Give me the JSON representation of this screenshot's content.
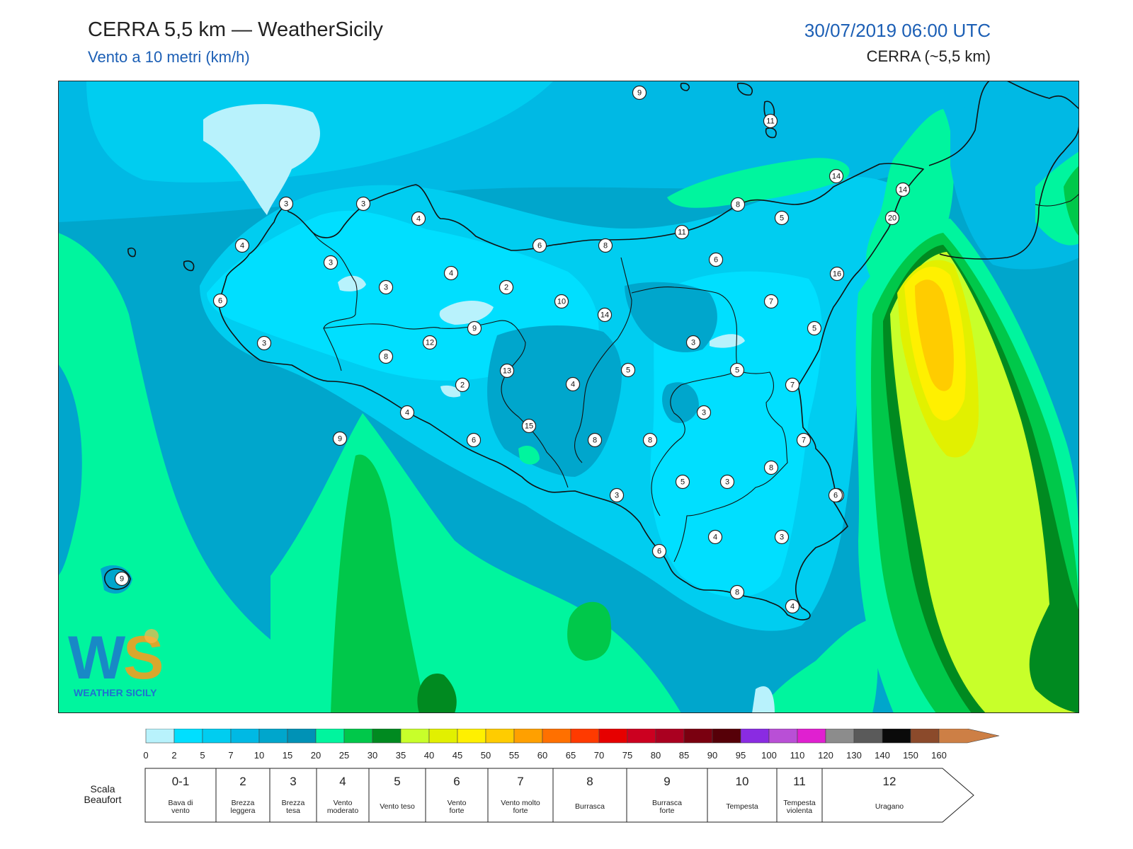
{
  "header": {
    "title": "CERRA 5,5 km — WeatherSicily",
    "subtitle": "Vento a 10 metri (km/h)",
    "datetime": "30/07/2019 06:00 UTC",
    "model": "CERRA (~5,5 km)"
  },
  "logo": {
    "text": "WEATHER SICILY"
  },
  "colors": {
    "c0": "#b8f2fc",
    "c2": "#00dfff",
    "c5": "#00cdf0",
    "c7": "#00b9e4",
    "c10": "#00a6cc",
    "c12": "#0092b6",
    "c15": "#00f59e",
    "c20": "#00c84a",
    "c25": "#008a20",
    "c30": "#c8ff2a",
    "c35": "#e2f000",
    "c40": "#fff000",
    "c45": "#ffcc00",
    "c_bg_map": "#00b2d8"
  },
  "colorbar": {
    "ticks": [
      "0",
      "2",
      "5",
      "7",
      "10",
      "15",
      "20",
      "25",
      "30",
      "35",
      "40",
      "45",
      "50",
      "55",
      "60",
      "65",
      "70",
      "75",
      "80",
      "85",
      "90",
      "95",
      "100",
      "110",
      "120",
      "130",
      "140",
      "150",
      "160"
    ],
    "colors": [
      "#b8f2fc",
      "#00dfff",
      "#00cdf0",
      "#00b9e4",
      "#00a6cc",
      "#0092b6",
      "#00f59e",
      "#00c84a",
      "#008a20",
      "#c8ff2a",
      "#e2f000",
      "#fff000",
      "#ffcc00",
      "#ffa000",
      "#ff7000",
      "#ff3a00",
      "#e60000",
      "#cc0020",
      "#aa0020",
      "#7a0010",
      "#560008",
      "#8a2be2",
      "#b94fd6",
      "#e020d0",
      "#8c8c8c",
      "#5a5a5a",
      "#0a0a0a",
      "#8b4a2b",
      "#cd7f45"
    ]
  },
  "beaufort": {
    "label": "Scala Beaufort",
    "scale": [
      {
        "num": "0-1",
        "name1": "Bava di",
        "name2": "vento"
      },
      {
        "num": "2",
        "name1": "Brezza",
        "name2": "leggera"
      },
      {
        "num": "3",
        "name1": "Brezza",
        "name2": "tesa"
      },
      {
        "num": "4",
        "name1": "Vento",
        "name2": "moderato"
      },
      {
        "num": "5",
        "name1": "Vento teso",
        "name2": ""
      },
      {
        "num": "6",
        "name1": "Vento",
        "name2": "forte"
      },
      {
        "num": "7",
        "name1": "Vento molto",
        "name2": "forte"
      },
      {
        "num": "8",
        "name1": "Burrasca",
        "name2": ""
      },
      {
        "num": "9",
        "name1": "Burrasca",
        "name2": "forte"
      },
      {
        "num": "10",
        "name1": "Tempesta",
        "name2": ""
      },
      {
        "num": "11",
        "name1": "Tempesta",
        "name2": "violenta"
      },
      {
        "num": "12",
        "name1": "Uragano",
        "name2": ""
      }
    ]
  },
  "stations": [
    "9",
    "11",
    "14",
    "14",
    "20",
    "16",
    "3",
    "3",
    "4",
    "4",
    "6",
    "9",
    "11",
    "8",
    "5",
    "3",
    "3",
    "6",
    "8",
    "6",
    "7",
    "5",
    "3",
    "4",
    "2",
    "10",
    "14",
    "3",
    "12",
    "9",
    "8",
    "13",
    "2",
    "4",
    "5",
    "5",
    "7",
    "4",
    "15",
    "6",
    "8",
    "8",
    "3",
    "7",
    "5",
    "3",
    "6",
    "8",
    "3",
    "4",
    "3",
    "6",
    "8",
    "4",
    "9",
    "6"
  ]
}
